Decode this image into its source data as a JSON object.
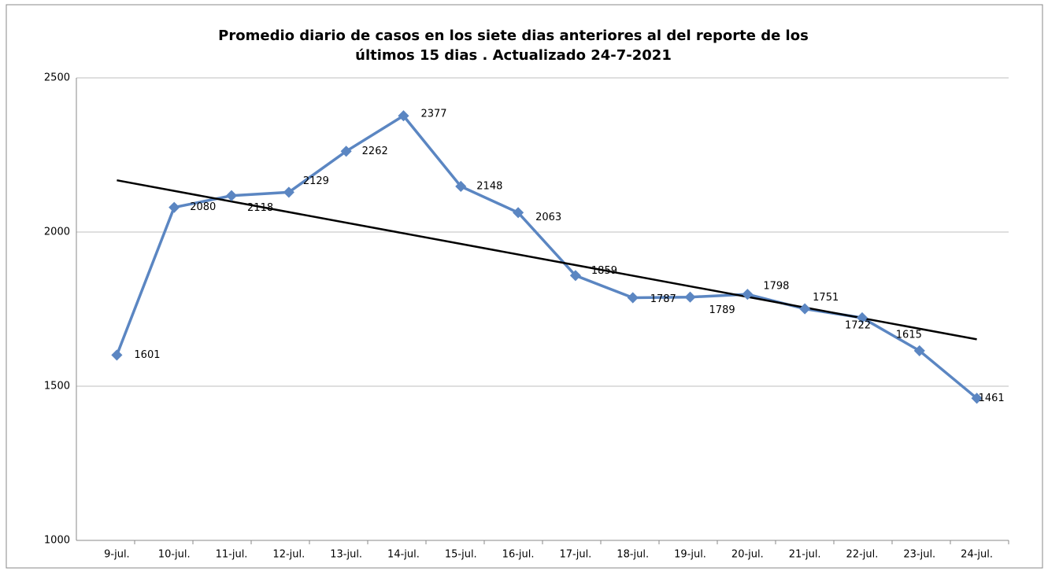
{
  "chart_data": {
    "type": "line",
    "title": [
      "Promedio diario de casos en los siete dias anteriores al del reporte de los",
      "últimos 15 dias . Actualizado 24-7-2021"
    ],
    "categories": [
      "9-jul.",
      "10-jul.",
      "11-jul.",
      "12-jul.",
      "13-jul.",
      "14-jul.",
      "15-jul.",
      "16-jul.",
      "17-jul.",
      "18-jul.",
      "19-jul.",
      "20-jul.",
      "21-jul.",
      "22-jul.",
      "23-jul.",
      "24-jul."
    ],
    "values": [
      1601,
      2080,
      2118,
      2129,
      2262,
      2377,
      2148,
      2063,
      1859,
      1787,
      1789,
      1798,
      1751,
      1722,
      1615,
      1461
    ],
    "color": "#5b86c2",
    "trendline": true,
    "trendline_color": "#000000",
    "ylim": [
      1000,
      2500
    ],
    "yticks": [
      1000,
      1500,
      2000,
      2500
    ],
    "grid": true
  }
}
